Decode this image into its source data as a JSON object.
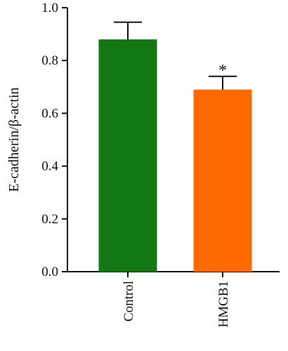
{
  "chart_data": {
    "type": "bar",
    "categories": [
      "Control",
      "HMGB1"
    ],
    "values": [
      0.88,
      0.69
    ],
    "errors": [
      0.065,
      0.05
    ],
    "annotations": [
      "",
      "*"
    ],
    "ylabel": "E-cadherin/β-actin",
    "xlabel": "",
    "ylim": [
      0,
      1.0
    ],
    "yticks": [
      "0.0",
      "0.2",
      "0.4",
      "0.6",
      "0.8",
      "1.0"
    ],
    "colors": [
      "#137813",
      "#ff6a00"
    ],
    "grid": false
  }
}
